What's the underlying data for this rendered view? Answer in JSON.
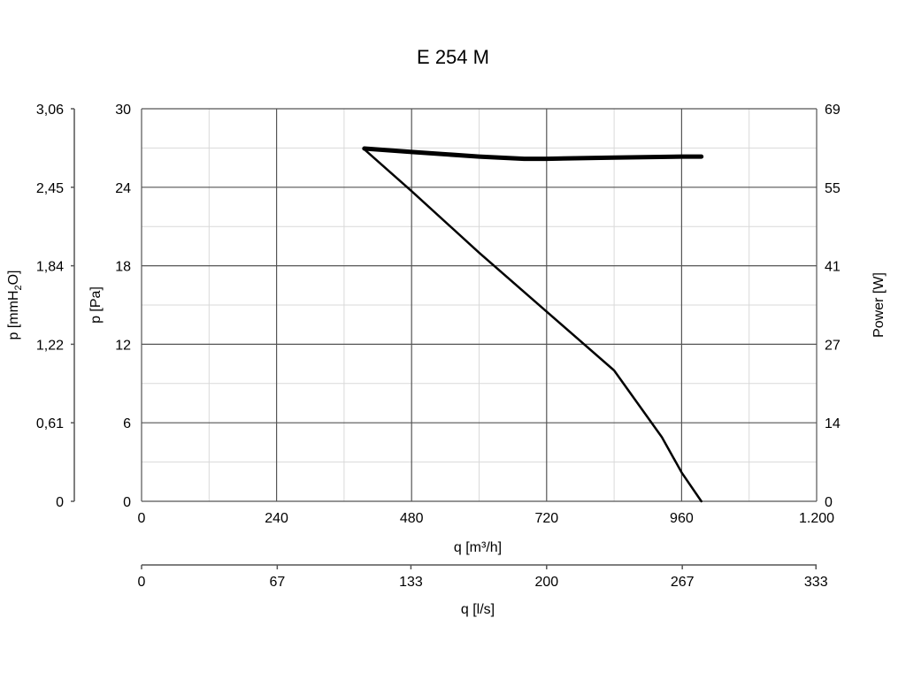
{
  "chart_data": {
    "type": "line",
    "title": "E 254 M",
    "x": {
      "label": "q [m³/h]",
      "range": [
        0,
        1200
      ],
      "ticks": [
        0,
        240,
        480,
        720,
        960,
        1200
      ],
      "tick_labels": [
        "0",
        "240",
        "480",
        "720",
        "960",
        "1.200"
      ]
    },
    "x2": {
      "label": "q [l/s]",
      "range": [
        0,
        333.33
      ],
      "ticks": [
        0,
        67,
        133,
        200,
        267,
        333
      ],
      "tick_labels": [
        "0",
        "67",
        "133",
        "200",
        "267",
        "333"
      ]
    },
    "y": {
      "label": "p [Pa]",
      "range": [
        0,
        30
      ],
      "ticks": [
        0,
        6,
        12,
        18,
        24,
        30
      ],
      "tick_labels": [
        "0",
        "6",
        "12",
        "18",
        "24",
        "30"
      ]
    },
    "y_left2": {
      "label_prefix": "p [mmH",
      "label_sub": "2",
      "label_suffix": "O]",
      "range": [
        0,
        3.06
      ],
      "tick_labels": [
        "0",
        "0,61",
        "1,22",
        "1,84",
        "2,45",
        "3,06"
      ]
    },
    "y_right": {
      "label": "Power [W]",
      "range": [
        0,
        69
      ],
      "tick_labels": [
        "0",
        "14",
        "27",
        "41",
        "55",
        "69"
      ]
    },
    "grid": true,
    "series": [
      {
        "axis": "y",
        "width": 2.5,
        "points": [
          [
            396,
            26.9
          ],
          [
            480,
            23.7
          ],
          [
            600,
            19.0
          ],
          [
            720,
            14.5
          ],
          [
            840,
            10.0
          ],
          [
            925,
            4.9
          ],
          [
            960,
            2.2
          ],
          [
            995,
            0
          ]
        ]
      },
      {
        "axis": "y_right",
        "width": 5,
        "points": [
          [
            396,
            62.0
          ],
          [
            480,
            61.4
          ],
          [
            600,
            60.6
          ],
          [
            680,
            60.2
          ],
          [
            720,
            60.2
          ],
          [
            840,
            60.4
          ],
          [
            960,
            60.6
          ],
          [
            995,
            60.6
          ]
        ]
      }
    ]
  }
}
